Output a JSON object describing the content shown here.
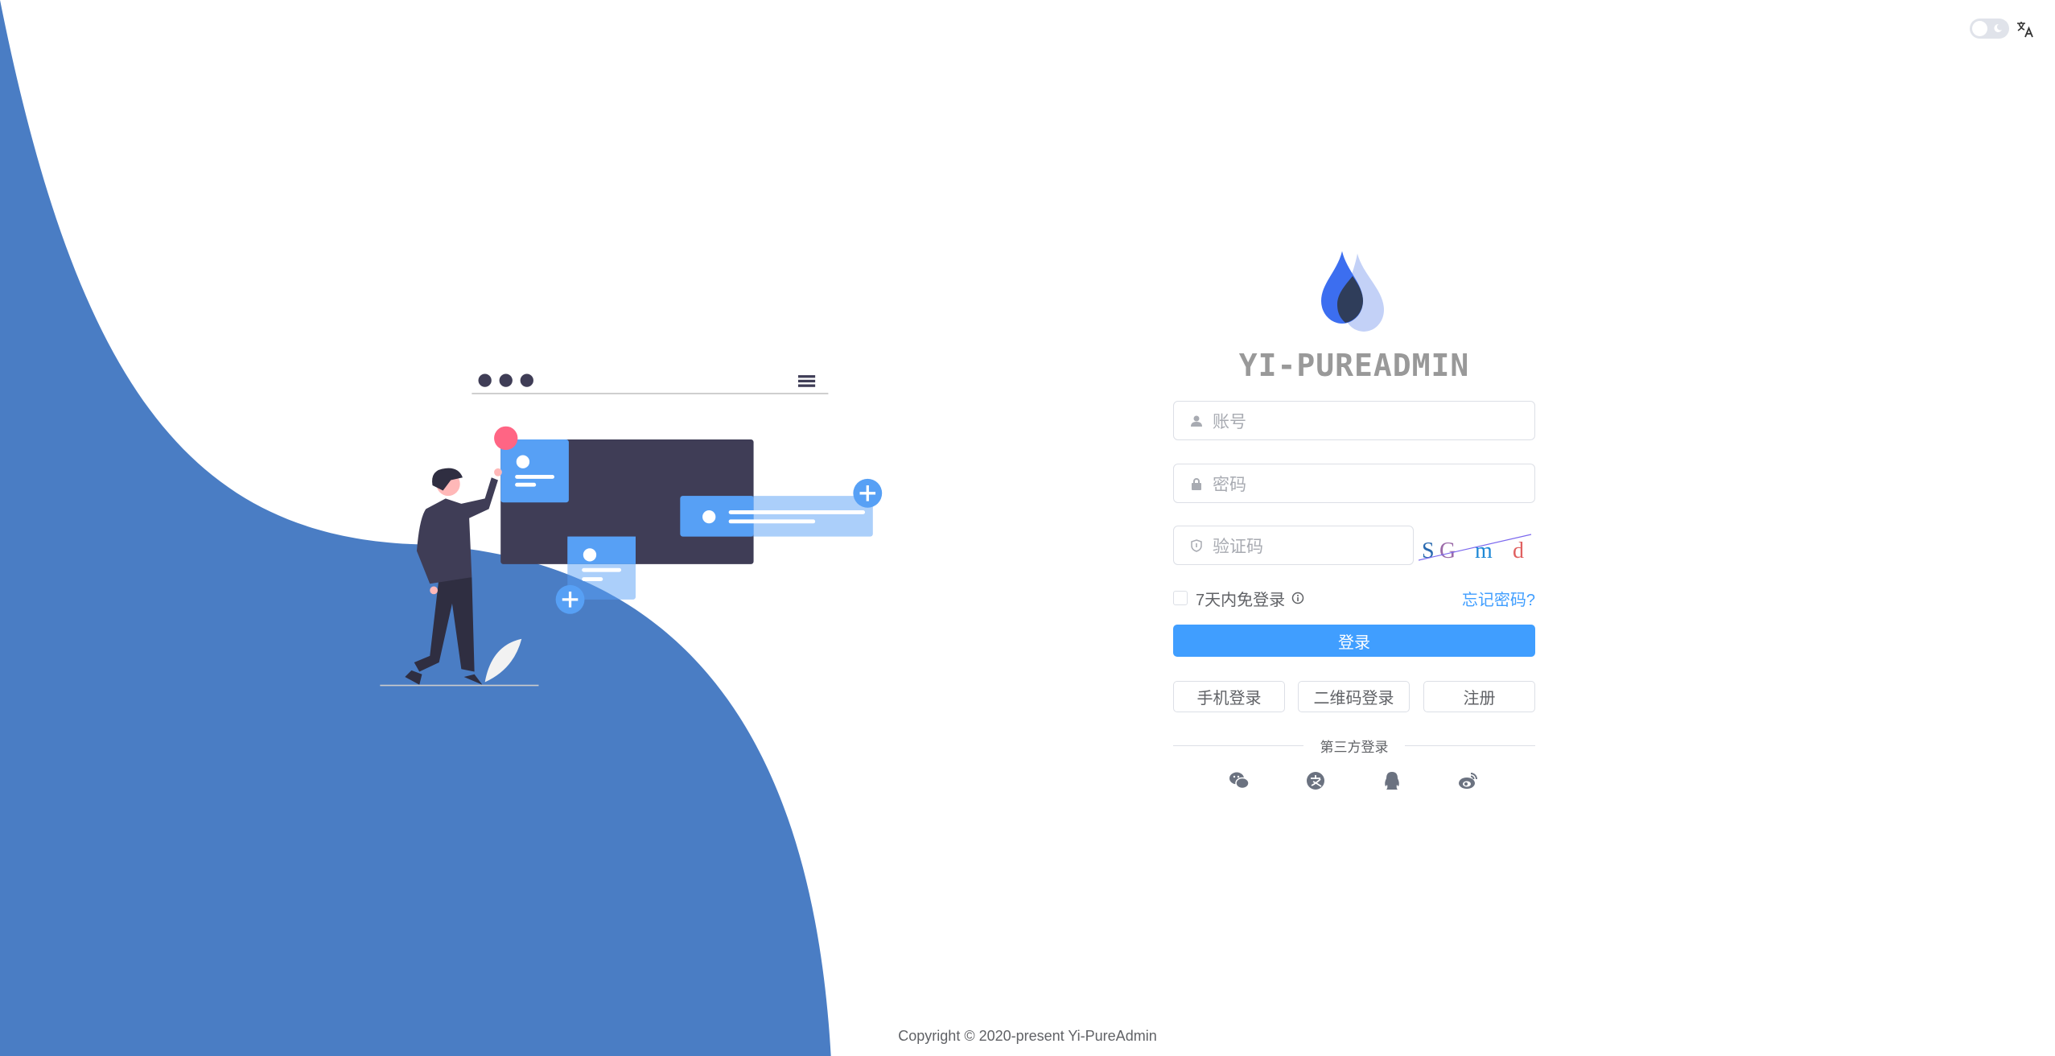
{
  "header": {
    "theme_toggle": "dark-mode-switch",
    "language_icon": "translate-icon"
  },
  "brand": {
    "title": "YI-PUREADMIN"
  },
  "form": {
    "username_placeholder": "账号",
    "password_placeholder": "密码",
    "captcha_placeholder": "验证码",
    "captcha_chars": [
      "S",
      "G",
      "m",
      "d"
    ],
    "remember_label": "7天内免登录",
    "forgot_label": "忘记密码?",
    "login_label": "登录",
    "alt_buttons": [
      "手机登录",
      "二维码登录",
      "注册"
    ],
    "third_party_label": "第三方登录",
    "third_party_icons": [
      "wechat-icon",
      "alipay-icon",
      "qq-icon",
      "weibo-icon"
    ]
  },
  "footer": {
    "copyright": "Copyright © 2020-present Yi-PureAdmin"
  },
  "colors": {
    "primary": "#409eff",
    "wave": "#4a7dc4",
    "dark": "#3f3d56",
    "card": "#57a0f5"
  }
}
